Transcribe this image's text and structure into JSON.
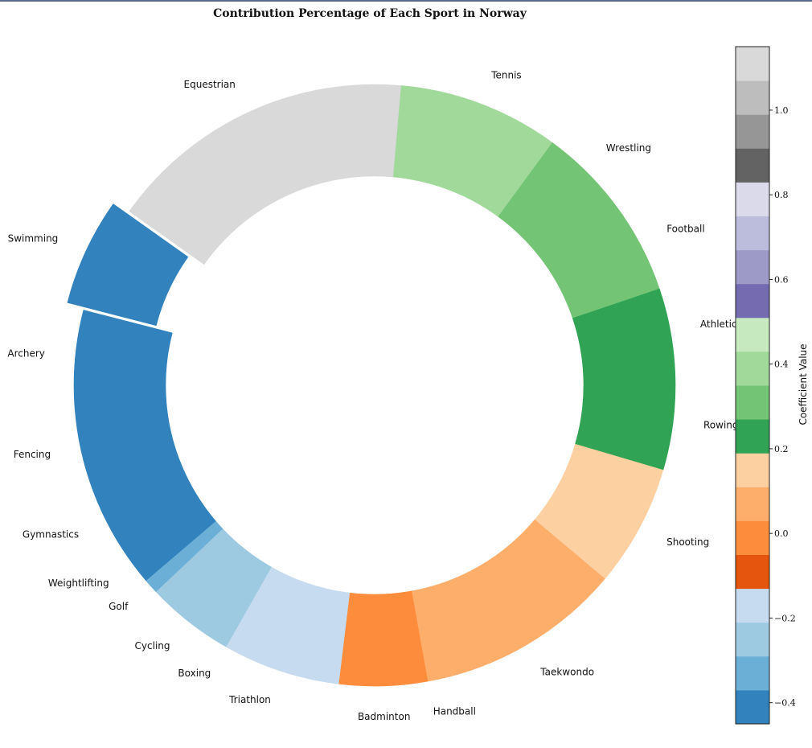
{
  "chart_data": {
    "type": "pie",
    "title": "Contribution Percentage of Each Sport in Norway",
    "start_angle_deg": 5,
    "direction": "clockwise",
    "exploded": "Swimming",
    "slices": [
      {
        "label": "Tennis",
        "value": 33,
        "color": "#a1d99b"
      },
      {
        "label": "Wrestling",
        "value": 17,
        "color": "#74c476"
      },
      {
        "label": "Football",
        "value": 20,
        "color": "#74c476"
      },
      {
        "label": "Athletic",
        "value": 17,
        "color": "#31a354"
      },
      {
        "label": "Rowing",
        "value": 20,
        "color": "#31a354"
      },
      {
        "label": "Shooting",
        "value": 25,
        "color": "#fdd0a2"
      },
      {
        "label": "Taekwondo",
        "value": 42,
        "color": "#fdae6b"
      },
      {
        "label": "Handball",
        "value": 0,
        "color": "#fdae6b"
      },
      {
        "label": "Badminton",
        "value": 18,
        "color": "#fd8d3c"
      },
      {
        "label": "Triathlon",
        "value": 24,
        "color": "#c6dbef"
      },
      {
        "label": "Boxing",
        "value": 0,
        "color": "#c6dbef"
      },
      {
        "label": "Cycling",
        "value": 18,
        "color": "#9ecae1"
      },
      {
        "label": "Golf",
        "value": 3,
        "color": "#6baed6"
      },
      {
        "label": "Weightlifting",
        "value": 8,
        "color": "#3182bd"
      },
      {
        "label": "Gymnastics",
        "value": 13,
        "color": "#3182bd"
      },
      {
        "label": "Fencing",
        "value": 18,
        "color": "#3182bd"
      },
      {
        "label": "Archery",
        "value": 19,
        "color": "#3182bd"
      },
      {
        "label": "Swimming",
        "value": 22,
        "color": "#3182bd"
      },
      {
        "label": "Equestrian",
        "value": 63,
        "color": "#d9d9d9"
      }
    ],
    "colorbar": {
      "label": "Coefficient Value",
      "range": [
        -0.45,
        1.15
      ],
      "ticks": [
        {
          "value": -0.4,
          "label": "−0.4"
        },
        {
          "value": -0.2,
          "label": "−0.2"
        },
        {
          "value": 0.0,
          "label": "0.0"
        },
        {
          "value": 0.2,
          "label": "0.2"
        },
        {
          "value": 0.4,
          "label": "0.4"
        },
        {
          "value": 0.6,
          "label": "0.6"
        },
        {
          "value": 0.8,
          "label": "0.8"
        },
        {
          "value": 1.0,
          "label": "1.0"
        }
      ],
      "colors": [
        "#3182bd",
        "#6baed6",
        "#9ecae1",
        "#c6dbef",
        "#e6550d",
        "#fd8d3c",
        "#fdae6b",
        "#fdd0a2",
        "#31a354",
        "#74c476",
        "#a1d99b",
        "#c7e9c0",
        "#756bb1",
        "#9e9ac8",
        "#bcbddc",
        "#dadaeb",
        "#636363",
        "#969696",
        "#bdbdbd",
        "#d9d9d9"
      ]
    }
  }
}
